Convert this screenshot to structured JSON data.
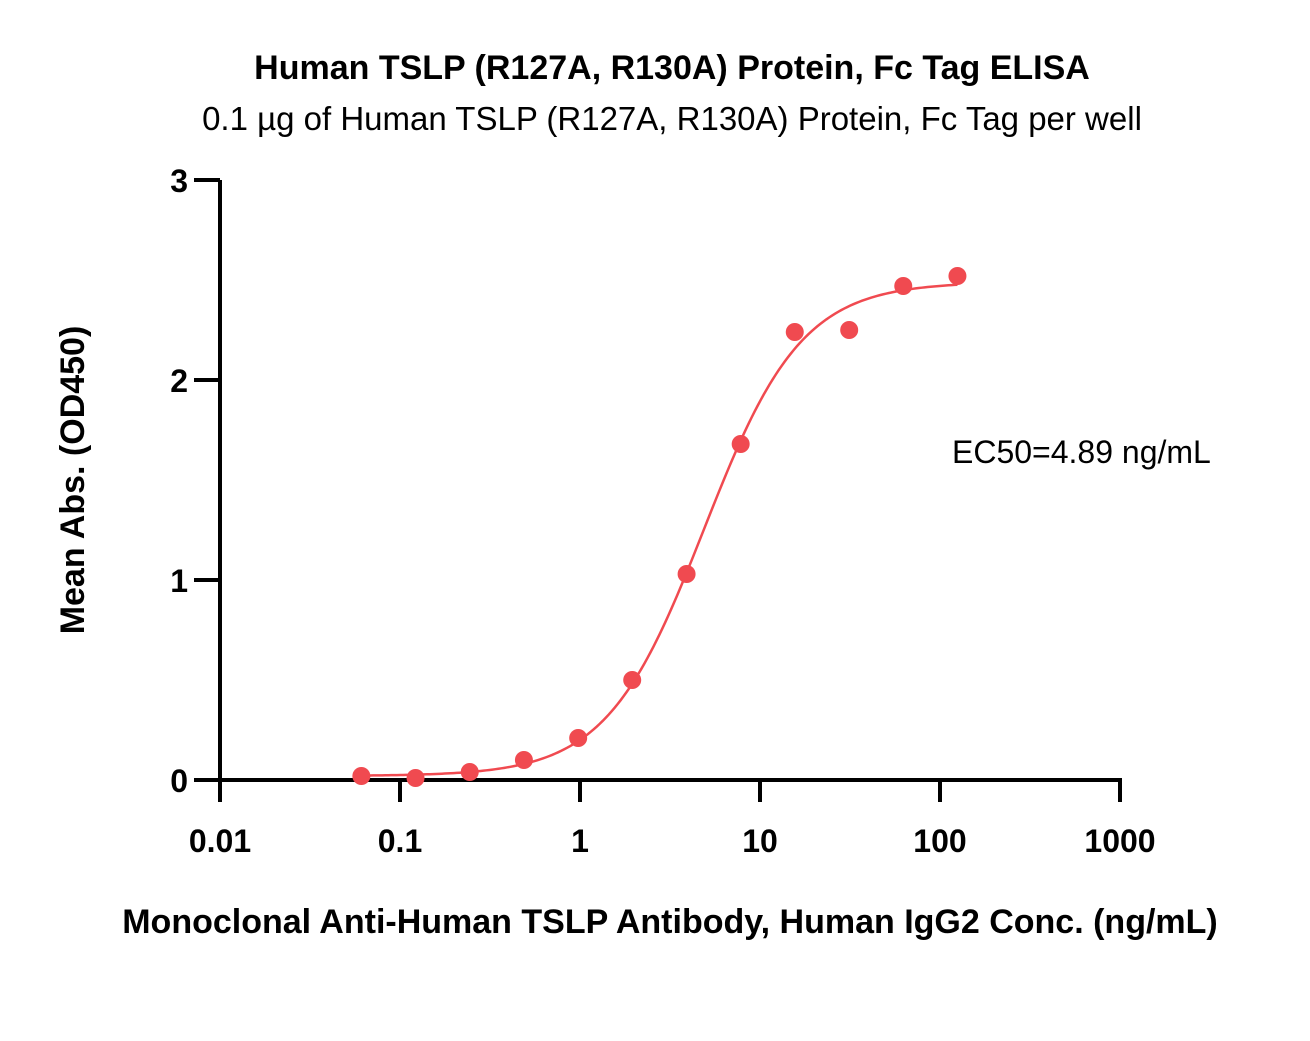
{
  "chart_data": {
    "type": "scatter",
    "title": "Human TSLP (R127A, R130A) Protein, Fc Tag ELISA",
    "subtitle": "0.1 µg of Human TSLP (R127A, R130A) Protein, Fc Tag per well",
    "xlabel": "Monoclonal Anti-Human TSLP Antibody, Human IgG2 Conc. (ng/mL)",
    "ylabel": "Mean Abs. (OD450)",
    "xscale": "log",
    "xlim": [
      0.01,
      1000
    ],
    "ylim": [
      0,
      3
    ],
    "xticks": [
      0.01,
      0.1,
      1,
      10,
      100,
      1000
    ],
    "xtick_labels": [
      "0.01",
      "0.1",
      "1",
      "10",
      "100",
      "1000"
    ],
    "yticks": [
      0,
      1,
      2,
      3
    ],
    "ytick_labels": [
      "0",
      "1",
      "2",
      "3"
    ],
    "grid": false,
    "annotation": "EC50=4.89 ng/mL",
    "series": [
      {
        "points": [
          {
            "x": 0.061,
            "y": 0.02
          },
          {
            "x": 0.122,
            "y": 0.01
          },
          {
            "x": 0.244,
            "y": 0.04
          },
          {
            "x": 0.488,
            "y": 0.1
          },
          {
            "x": 0.977,
            "y": 0.21
          },
          {
            "x": 1.95,
            "y": 0.5
          },
          {
            "x": 3.91,
            "y": 1.03
          },
          {
            "x": 7.81,
            "y": 1.68
          },
          {
            "x": 15.6,
            "y": 2.24
          },
          {
            "x": 31.3,
            "y": 2.25
          },
          {
            "x": 62.5,
            "y": 2.47
          },
          {
            "x": 125,
            "y": 2.52
          }
        ],
        "fit": {
          "bottom": 0.02,
          "top": 2.49,
          "ec50": 4.89,
          "hill": 1.6
        },
        "color": "#f04a50"
      }
    ]
  }
}
